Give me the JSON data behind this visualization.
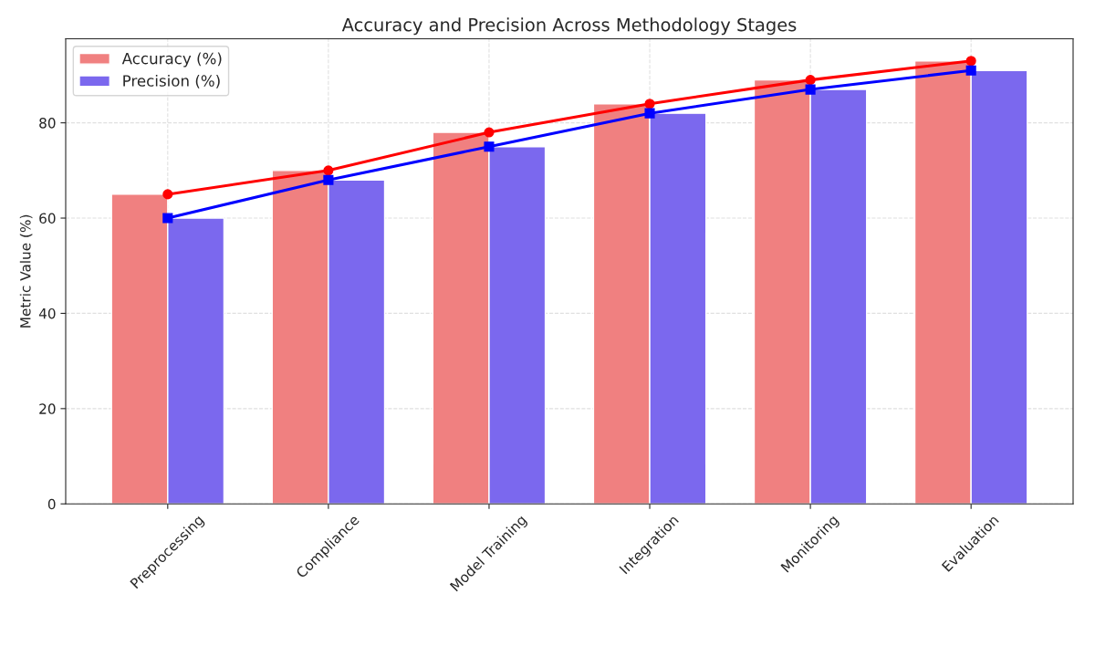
{
  "chart_data": {
    "type": "bar",
    "title": "Accuracy and Precision Across Methodology Stages",
    "ylabel": "Metric Value (%)",
    "categories": [
      "Preprocessing",
      "Compliance",
      "Model Training",
      "Integration",
      "Monitoring",
      "Evaluation"
    ],
    "series": [
      {
        "name": "Accuracy (%)",
        "color": "#f08080",
        "values": [
          65,
          70,
          78,
          84,
          89,
          93
        ]
      },
      {
        "name": "Precision (%)",
        "color": "#7b68ee",
        "values": [
          60,
          68,
          75,
          82,
          87,
          91
        ]
      },
      {
        "type": "line",
        "color": "#ff0000",
        "marker": "circle",
        "values": [
          65,
          70,
          78,
          84,
          89,
          93
        ]
      },
      {
        "type": "line",
        "color": "#0000ff",
        "marker": "square",
        "values": [
          60,
          68,
          75,
          82,
          87,
          91
        ]
      }
    ],
    "ylim": [
      0,
      97.65
    ],
    "yticks": [
      0,
      20,
      40,
      60,
      80
    ],
    "grid": true,
    "legend": "top left"
  }
}
